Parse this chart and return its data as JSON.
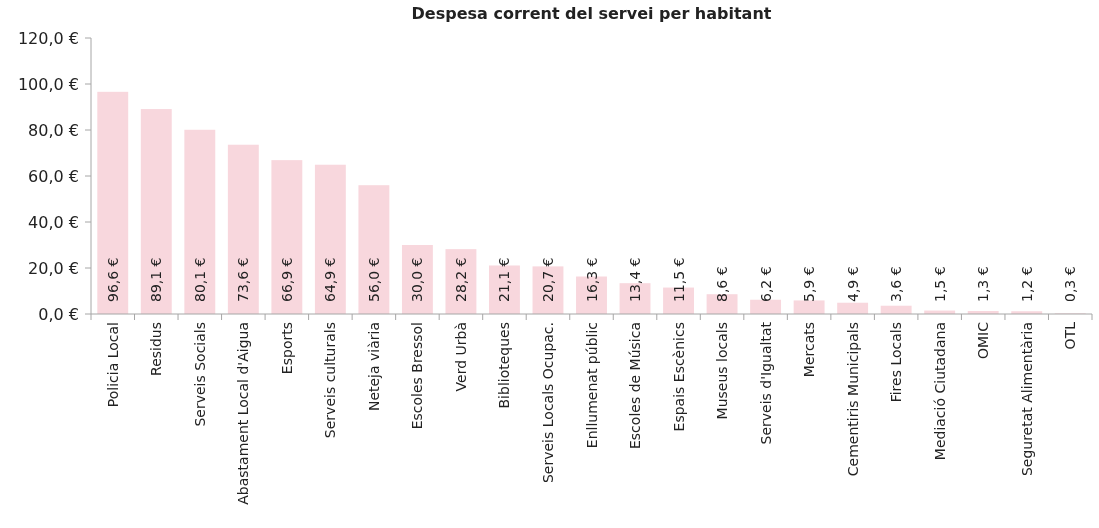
{
  "chart_data": {
    "type": "bar",
    "title": "Despesa corrent del servei per habitant",
    "categories": [
      "Policia Local",
      "Residus",
      "Serveis Socials",
      "Abastament Local d'Aigua",
      "Esports",
      "Serveis culturals",
      "Neteja viària",
      "Escoles Bressol",
      "Verd Urbà",
      "Biblioteques",
      "Serveis Locals Ocupac.",
      "Enllumenat públic",
      "Escoles de Música",
      "Espais Escènics",
      "Museus locals",
      "Serveis d'Igualtat",
      "Mercats",
      "Cementiris Municipals",
      "Fires Locals",
      "Mediació Ciutadana",
      "OMIC",
      "Seguretat Alimentària",
      "OTL"
    ],
    "values": [
      96.6,
      89.1,
      80.1,
      73.6,
      66.9,
      64.9,
      56.0,
      30.0,
      28.2,
      21.1,
      20.7,
      16.3,
      13.4,
      11.5,
      8.6,
      6.2,
      5.9,
      4.9,
      3.6,
      1.5,
      1.3,
      1.2,
      0.3
    ],
    "value_labels": [
      "96,6 €",
      "89,1 €",
      "80,1 €",
      "73,6 €",
      "66,9 €",
      "64,9 €",
      "56,0 €",
      "30,0 €",
      "28,2 €",
      "21,1 €",
      "20,7 €",
      "16,3 €",
      "13,4 €",
      "11,5 €",
      "8,6 €",
      "6,2 €",
      "5,9 €",
      "4,9 €",
      "3,6 €",
      "1,5 €",
      "1,3 €",
      "1,2 €",
      "0,3 €"
    ],
    "color": "#f8d7dd",
    "ylim": [
      0,
      120
    ],
    "yticks": [
      {
        "value": 0,
        "label": "0,0 €"
      },
      {
        "value": 20,
        "label": "20,0 €"
      },
      {
        "value": 40,
        "label": "40,0 €"
      },
      {
        "value": 60,
        "label": "60,0 €"
      },
      {
        "value": 80,
        "label": "80,0 €"
      },
      {
        "value": 100,
        "label": "100,0 €"
      },
      {
        "value": 120,
        "label": "120,0 €"
      }
    ]
  }
}
